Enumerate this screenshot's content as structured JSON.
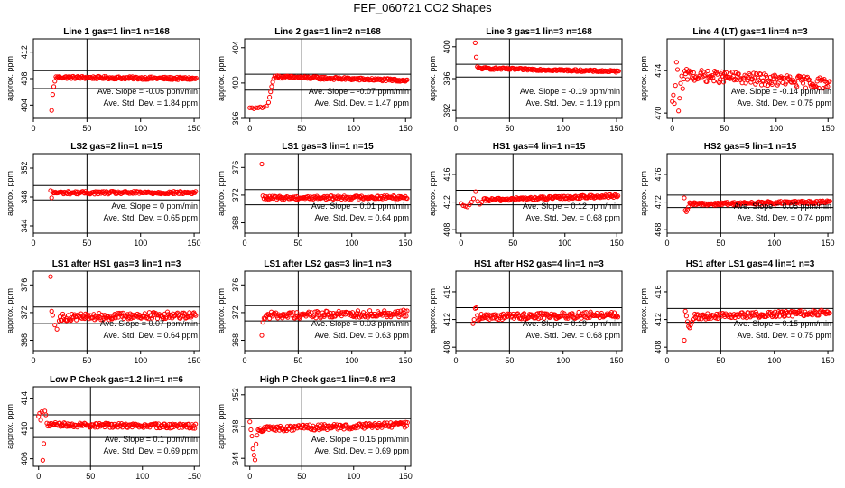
{
  "figure": {
    "title": "FEF_060721  CO2 Shapes"
  },
  "style": {
    "marker_color": "#ff0000",
    "axis_color": "#000000",
    "background": "#ffffff"
  },
  "chart_data": [
    {
      "type": "scatter",
      "title": "Line 1 gas=1 lin=1 n=168",
      "ylabel": "approx. ppm",
      "xlim": [
        0,
        155
      ],
      "ylim": [
        402,
        414
      ],
      "xticks": [
        0,
        50,
        100,
        150
      ],
      "yticks": [
        404,
        408,
        412
      ],
      "hlines": [
        406.5,
        409.2
      ],
      "vline": 50,
      "stats": {
        "slope": "Ave. Slope = -0.05  ppm/min",
        "std": "Ave. Std. Dev. = 1.84  ppm"
      },
      "start_points": [
        [
          17,
          403.2
        ],
        [
          18,
          405.6
        ],
        [
          19,
          406.8
        ],
        [
          20,
          407.6
        ]
      ],
      "shape": {
        "x_start": 21,
        "x_end": 152,
        "start": 408.2,
        "end": 408.0,
        "noise": 0.2
      }
    },
    {
      "type": "scatter",
      "title": "Line 2 gas=1 lin=2 n=168",
      "ylabel": "approx. ppm",
      "xlim": [
        -5,
        155
      ],
      "ylim": [
        396,
        405
      ],
      "xticks": [
        0,
        50,
        100,
        150
      ],
      "yticks": [
        396,
        400,
        404
      ],
      "hlines": [
        399.2,
        401.0
      ],
      "vline": 50,
      "stats": {
        "slope": "Ave. Slope = -0.07  ppm/min",
        "std": "Ave. Std. Dev. = 1.47  ppm"
      },
      "start_points": [
        [
          0,
          397.2
        ],
        [
          2,
          397.2
        ],
        [
          4,
          397.1
        ],
        [
          6,
          397.2
        ],
        [
          8,
          397.2
        ],
        [
          10,
          397.3
        ],
        [
          12,
          397.2
        ],
        [
          14,
          397.3
        ],
        [
          16,
          397.4
        ],
        [
          18,
          397.8
        ],
        [
          19,
          398.4
        ],
        [
          20,
          399.0
        ],
        [
          21,
          399.6
        ],
        [
          22,
          400.1
        ],
        [
          23,
          400.5
        ]
      ],
      "shape": {
        "x_start": 24,
        "x_end": 152,
        "start": 400.7,
        "end": 400.3,
        "noise": 0.15
      }
    },
    {
      "type": "scatter",
      "title": "Line 3 gas=1 lin=3 n=168",
      "ylabel": "approx. ppm",
      "xlim": [
        0,
        155
      ],
      "ylim": [
        391,
        401
      ],
      "xticks": [
        0,
        50,
        100,
        150
      ],
      "yticks": [
        392,
        396,
        400
      ],
      "hlines": [
        396.2,
        397.8
      ],
      "vline": 50,
      "stats": {
        "slope": "Ave. Slope = -0.19  ppm/min",
        "std": "Ave. Std. Dev. = 1.19  ppm"
      },
      "start_points": [
        [
          18,
          400.5
        ],
        [
          19,
          398.7
        ],
        [
          20,
          397.5
        ]
      ],
      "shape": {
        "x_start": 21,
        "x_end": 152,
        "start": 397.3,
        "end": 396.9,
        "noise": 0.12
      }
    },
    {
      "type": "scatter",
      "title": "Line 4 (LT) gas=1 lin=4 n=3",
      "ylabel": "approx. ppm",
      "xlim": [
        -5,
        155
      ],
      "ylim": [
        469.5,
        477
      ],
      "xticks": [
        0,
        50,
        100,
        150
      ],
      "yticks": [
        470,
        474
      ],
      "hlines": [],
      "vline": 50,
      "stats": {
        "slope": "Ave. Slope = -0.14  ppm/min",
        "std": "Ave. Std. Dev. = 0.75  ppm"
      },
      "start_points": [
        [
          0,
          471.1
        ],
        [
          1,
          471.7
        ],
        [
          2,
          470.9
        ],
        [
          3,
          472.6
        ],
        [
          4,
          474.8
        ],
        [
          5,
          474.1
        ],
        [
          6,
          470.2
        ],
        [
          7,
          471.4
        ],
        [
          8,
          472.8
        ],
        [
          9,
          473.5
        ],
        [
          10,
          472.3
        ],
        [
          11,
          473.2
        ]
      ],
      "shape": {
        "x_start": 12,
        "x_end": 152,
        "start": 473.6,
        "end": 472.8,
        "noise": 0.55
      }
    },
    {
      "type": "scatter",
      "title": "LS2 gas=2 lin=1 n=15",
      "ylabel": "approx. ppm",
      "xlim": [
        0,
        155
      ],
      "ylim": [
        343,
        354
      ],
      "xticks": [
        0,
        50,
        100,
        150
      ],
      "yticks": [
        344,
        348,
        352
      ],
      "hlines": [
        347.6,
        349.6
      ],
      "vline": 50,
      "stats": {
        "slope": "Ave. Slope =  0  ppm/min",
        "std": "Ave. Std. Dev. = 0.65  ppm"
      },
      "start_points": [
        [
          16,
          348.9
        ],
        [
          17,
          347.9
        ]
      ],
      "shape": {
        "x_start": 18,
        "x_end": 152,
        "start": 348.6,
        "end": 348.6,
        "noise": 0.2
      }
    },
    {
      "type": "scatter",
      "title": "LS1 gas=3 lin=1 n=15",
      "ylabel": "approx. ppm",
      "xlim": [
        0,
        155
      ],
      "ylim": [
        366.5,
        378
      ],
      "xticks": [
        0,
        50,
        100,
        150
      ],
      "yticks": [
        368,
        372,
        376
      ],
      "hlines": [
        370.6,
        372.8
      ],
      "vline": 50,
      "stats": {
        "slope": "Ave. Slope =  0.01  ppm/min",
        "std": "Ave. Std. Dev. = 0.64  ppm"
      },
      "start_points": [
        [
          16,
          376.5
        ],
        [
          17,
          371.9
        ],
        [
          18,
          371.5
        ]
      ],
      "shape": {
        "x_start": 19,
        "x_end": 152,
        "start": 371.6,
        "end": 371.7,
        "noise": 0.25
      }
    },
    {
      "type": "scatter",
      "title": "HS1 gas=4 lin=1 n=15",
      "ylabel": "approx. ppm",
      "xlim": [
        -5,
        155
      ],
      "ylim": [
        407.5,
        419
      ],
      "xticks": [
        0,
        50,
        100,
        150
      ],
      "yticks": [
        408,
        412,
        416
      ],
      "hlines": [
        411.6,
        413.7
      ],
      "vline": 50,
      "stats": {
        "slope": "Ave. Slope =  0.12  ppm/min",
        "std": "Ave. Std. Dev. = 0.68  ppm"
      },
      "start_points": [
        [
          0,
          411.8
        ],
        [
          2,
          411.5
        ],
        [
          4,
          411.4
        ],
        [
          6,
          411.3
        ],
        [
          8,
          411.6
        ],
        [
          10,
          412.0
        ],
        [
          12,
          412.5
        ],
        [
          14,
          413.5
        ],
        [
          16,
          412.1
        ],
        [
          18,
          411.7
        ],
        [
          20,
          412.0
        ]
      ],
      "shape": {
        "x_start": 22,
        "x_end": 152,
        "start": 412.3,
        "end": 412.9,
        "noise": 0.22
      }
    },
    {
      "type": "scatter",
      "title": "HS2 gas=5 lin=1 n=15",
      "ylabel": "approx. ppm",
      "xlim": [
        0,
        155
      ],
      "ylim": [
        467.5,
        479
      ],
      "xticks": [
        0,
        50,
        100,
        150
      ],
      "yticks": [
        468,
        472,
        476
      ],
      "hlines": [
        471.2,
        473.0
      ],
      "vline": 50,
      "stats": {
        "slope": "Ave. Slope =  0.05  ppm/min",
        "std": "Ave. Std. Dev. = 0.74  ppm"
      },
      "start_points": [
        [
          16,
          472.6
        ],
        [
          17,
          470.8
        ],
        [
          18,
          470.6
        ],
        [
          19,
          470.9
        ],
        [
          20,
          471.3
        ]
      ],
      "shape": {
        "x_start": 21,
        "x_end": 152,
        "start": 471.7,
        "end": 472.0,
        "noise": 0.22
      }
    },
    {
      "type": "scatter",
      "title": "LS1 after HS1 gas=3 lin=1 n=3",
      "ylabel": "approx. ppm",
      "xlim": [
        0,
        155
      ],
      "ylim": [
        366.5,
        378
      ],
      "xticks": [
        0,
        50,
        100,
        150
      ],
      "yticks": [
        368,
        372,
        376
      ],
      "hlines": [
        370.4,
        372.8
      ],
      "vline": 50,
      "stats": {
        "slope": "Ave. Slope =  0.07  ppm/min",
        "std": "Ave. Std. Dev. = 0.64  ppm"
      },
      "start_points": [
        [
          16,
          377.2
        ],
        [
          17,
          372.2
        ],
        [
          18,
          371.6
        ],
        [
          20,
          370.2
        ],
        [
          22,
          369.6
        ]
      ],
      "shape": {
        "x_start": 24,
        "x_end": 152,
        "start": 371.3,
        "end": 371.7,
        "noise": 0.5
      }
    },
    {
      "type": "scatter",
      "title": "LS1 after LS2 gas=3 lin=1 n=3",
      "ylabel": "approx. ppm",
      "xlim": [
        0,
        155
      ],
      "ylim": [
        366.5,
        378
      ],
      "xticks": [
        0,
        50,
        100,
        150
      ],
      "yticks": [
        368,
        372,
        376
      ],
      "hlines": [
        370.8,
        373.0
      ],
      "vline": 50,
      "stats": {
        "slope": "Ave. Slope =  0.03  ppm/min",
        "std": "Ave. Std. Dev. = 0.63  ppm"
      },
      "start_points": [
        [
          16,
          368.7
        ],
        [
          17,
          370.6
        ],
        [
          18,
          371.2
        ]
      ],
      "shape": {
        "x_start": 19,
        "x_end": 152,
        "start": 371.6,
        "end": 371.9,
        "noise": 0.5
      }
    },
    {
      "type": "scatter",
      "title": "HS1 after HS2 gas=4 lin=1 n=3",
      "ylabel": "approx. ppm",
      "xlim": [
        0,
        155
      ],
      "ylim": [
        407.5,
        419
      ],
      "xticks": [
        0,
        50,
        100,
        150
      ],
      "yticks": [
        408,
        412,
        416
      ],
      "hlines": [
        411.6,
        413.7
      ],
      "vline": 50,
      "stats": {
        "slope": "Ave. Slope =  0.19  ppm/min",
        "std": "Ave. Std. Dev. = 0.68  ppm"
      },
      "start_points": [
        [
          16,
          411.4
        ],
        [
          17,
          412.0
        ],
        [
          18,
          413.6
        ],
        [
          19,
          413.7
        ],
        [
          20,
          412.6
        ],
        [
          21,
          411.9
        ]
      ],
      "shape": {
        "x_start": 22,
        "x_end": 152,
        "start": 412.4,
        "end": 412.7,
        "noise": 0.45
      }
    },
    {
      "type": "scatter",
      "title": "HS1 after LS1 gas=4 lin=1 n=3",
      "ylabel": "approx. ppm",
      "xlim": [
        0,
        155
      ],
      "ylim": [
        407.5,
        419
      ],
      "xticks": [
        0,
        50,
        100,
        150
      ],
      "yticks": [
        408,
        412,
        416
      ],
      "hlines": [
        411.6,
        413.6
      ],
      "vline": 50,
      "stats": {
        "slope": "Ave. Slope =  0.15  ppm/min",
        "std": "Ave. Std. Dev. = 0.75  ppm"
      },
      "start_points": [
        [
          16,
          409.0
        ],
        [
          17,
          413.2
        ],
        [
          18,
          412.5
        ],
        [
          19,
          411.7
        ],
        [
          20,
          411.0
        ],
        [
          21,
          410.8
        ],
        [
          22,
          411.2
        ],
        [
          23,
          411.6
        ],
        [
          24,
          412.0
        ]
      ],
      "shape": {
        "x_start": 25,
        "x_end": 152,
        "start": 412.4,
        "end": 413.0,
        "noise": 0.4
      }
    },
    {
      "type": "scatter",
      "title": "Low P Check gas=1.2 lin=1 n=6",
      "ylabel": "approx. ppm",
      "xlim": [
        -5,
        155
      ],
      "ylim": [
        405,
        415.5
      ],
      "xticks": [
        0,
        50,
        100,
        150
      ],
      "yticks": [
        406,
        410,
        414
      ],
      "hlines": [
        408.8,
        411.8
      ],
      "vline": 50,
      "stats": {
        "slope": "Ave. Slope =  0.1  ppm/min",
        "std": "Ave. Std. Dev. = 0.69  ppm"
      },
      "start_points": [
        [
          0,
          411.6
        ],
        [
          1,
          412.0
        ],
        [
          2,
          411.1
        ],
        [
          3,
          412.2
        ],
        [
          4,
          405.8
        ],
        [
          5,
          408.0
        ],
        [
          6,
          412.3
        ],
        [
          7,
          411.8
        ],
        [
          8,
          410.7
        ],
        [
          9,
          410.3
        ],
        [
          10,
          410.6
        ]
      ],
      "shape": {
        "x_start": 11,
        "x_end": 152,
        "start": 410.5,
        "end": 410.3,
        "noise": 0.3
      }
    },
    {
      "type": "scatter",
      "title": "High P Check gas=1 lin=0.8 n=3",
      "ylabel": "approx. ppm",
      "xlim": [
        -5,
        155
      ],
      "ylim": [
        343,
        353
      ],
      "xticks": [
        0,
        50,
        100,
        150
      ],
      "yticks": [
        344,
        348,
        352
      ],
      "hlines": [
        346.8,
        349.0
      ],
      "vline": 50,
      "stats": {
        "slope": "Ave. Slope =  0.15  ppm/min",
        "std": "Ave. Std. Dev. = 0.69  ppm"
      },
      "start_points": [
        [
          0,
          348.6
        ],
        [
          1,
          347.6
        ],
        [
          2,
          346.8
        ],
        [
          3,
          345.2
        ],
        [
          4,
          344.4
        ],
        [
          5,
          343.8
        ],
        [
          6,
          345.8
        ],
        [
          7,
          346.9
        ],
        [
          8,
          347.6
        ]
      ],
      "shape": {
        "x_start": 9,
        "x_end": 152,
        "start": 347.7,
        "end": 348.2,
        "noise": 0.35
      }
    }
  ]
}
